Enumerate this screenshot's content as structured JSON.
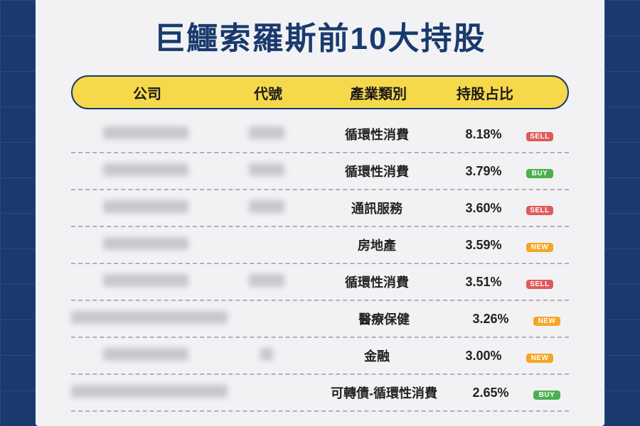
{
  "title": "巨鱷索羅斯前10大持股",
  "colors": {
    "page_bg": "#1a3a6e",
    "grid": "#2a4a7e",
    "card_bg": "#f2f2f5",
    "title": "#1a3a6e",
    "pill_bg": "#f5d94a",
    "pill_border": "#1a3a6e",
    "text": "#222222",
    "divider": "#b0b0b8",
    "blur_block": "#c8c8cc",
    "badge_sell": "#e05a5a",
    "badge_buy": "#4caf50",
    "badge_new": "#f5a623"
  },
  "header": {
    "company": "公司",
    "ticker": "代號",
    "sector": "產業類別",
    "pct": "持股占比"
  },
  "badges": {
    "SELL": {
      "label": "SELL",
      "color": "#e05a5a"
    },
    "BUY": {
      "label": "BUY",
      "color": "#4caf50"
    },
    "NEW": {
      "label": "NEW",
      "color": "#f5a623"
    }
  },
  "rows": [
    {
      "sector": "循環性消費",
      "pct": "8.18%",
      "badge": "SELL",
      "company_blur": "normal",
      "ticker_blur": "normal"
    },
    {
      "sector": "循環性消費",
      "pct": "3.79%",
      "badge": "BUY",
      "company_blur": "normal",
      "ticker_blur": "normal"
    },
    {
      "sector": "通訊服務",
      "pct": "3.60%",
      "badge": "SELL",
      "company_blur": "normal",
      "ticker_blur": "normal"
    },
    {
      "sector": "房地產",
      "pct": "3.59%",
      "badge": "NEW",
      "company_blur": "normal",
      "ticker_blur": "none"
    },
    {
      "sector": "循環性消費",
      "pct": "3.51%",
      "badge": "SELL",
      "company_blur": "normal",
      "ticker_blur": "normal"
    },
    {
      "sector": "醫療保健",
      "pct": "3.26%",
      "badge": "NEW",
      "company_blur": "wide",
      "ticker_blur": "none"
    },
    {
      "sector": "金融",
      "pct": "3.00%",
      "badge": "NEW",
      "company_blur": "normal",
      "ticker_blur": "tiny"
    },
    {
      "sector": "可轉債-循環性消費",
      "pct": "2.65%",
      "badge": "BUY",
      "company_blur": "wide",
      "ticker_blur": "none"
    }
  ]
}
